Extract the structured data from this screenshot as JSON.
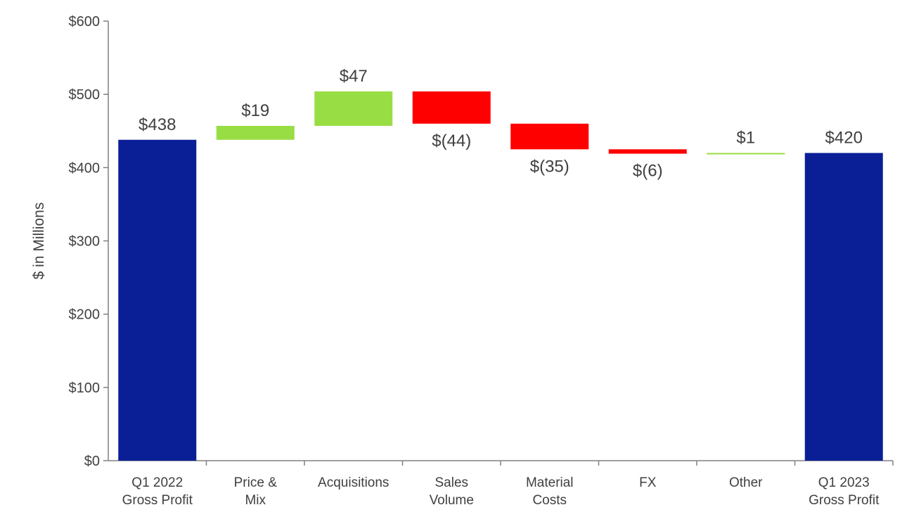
{
  "chart_data": {
    "type": "waterfall",
    "ylabel": "$ in Millions",
    "ylim": [
      0,
      600
    ],
    "yticks": [
      0,
      100,
      200,
      300,
      400,
      500,
      600
    ],
    "ytick_labels": [
      "$0",
      "$100",
      "$200",
      "$300",
      "$400",
      "$500",
      "$600"
    ],
    "grid": false,
    "categories": [
      [
        "Q1 2022",
        "Gross Profit"
      ],
      [
        "Price &",
        "Mix"
      ],
      [
        "Acquisitions"
      ],
      [
        "Sales",
        "Volume"
      ],
      [
        "Material",
        "Costs"
      ],
      [
        "FX"
      ],
      [
        "Other"
      ],
      [
        "Q1 2023",
        "Gross Profit"
      ]
    ],
    "bars": [
      {
        "kind": "total",
        "value": 438,
        "label": "$438"
      },
      {
        "kind": "delta",
        "value": 19,
        "label": "$19"
      },
      {
        "kind": "delta",
        "value": 47,
        "label": "$47"
      },
      {
        "kind": "delta",
        "value": -44,
        "label": "$(44)"
      },
      {
        "kind": "delta",
        "value": -35,
        "label": "$(35)"
      },
      {
        "kind": "delta",
        "value": -6,
        "label": "$(6)"
      },
      {
        "kind": "delta",
        "value": 1,
        "label": "$1"
      },
      {
        "kind": "total",
        "value": 420,
        "label": "$420"
      }
    ],
    "colors": {
      "total": "#0a1f96",
      "increase": "#99dd44",
      "decrease": "#ff0000",
      "axis": "#808080",
      "text": "#404040"
    }
  }
}
